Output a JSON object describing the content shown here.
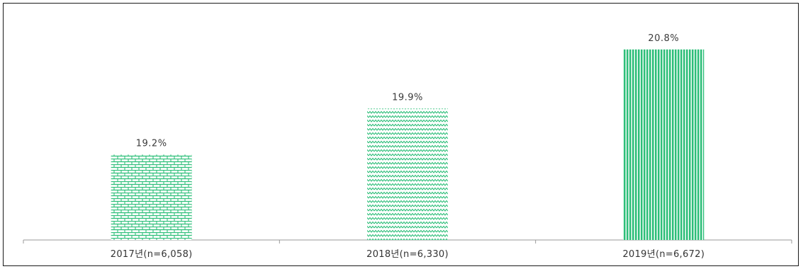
{
  "chart_data": {
    "type": "bar",
    "categories": [
      "2017년(n=6,058)",
      "2018년(n=6,330)",
      "2019년(n=6,672)"
    ],
    "values": [
      19.2,
      19.9,
      20.8
    ],
    "data_labels": [
      "19.2%",
      "19.9%",
      "20.8%"
    ],
    "title": "",
    "xlabel": "",
    "ylabel": "",
    "ylim": [
      17.9,
      21.1
    ],
    "grid": false,
    "legend": "none",
    "bar_patterns": [
      "brick",
      "zigzag",
      "vertical-stripes"
    ],
    "colors": {
      "accent": "#2fbf7a",
      "axis": "#9a9a9a",
      "frame": "#1a1a1a"
    }
  }
}
